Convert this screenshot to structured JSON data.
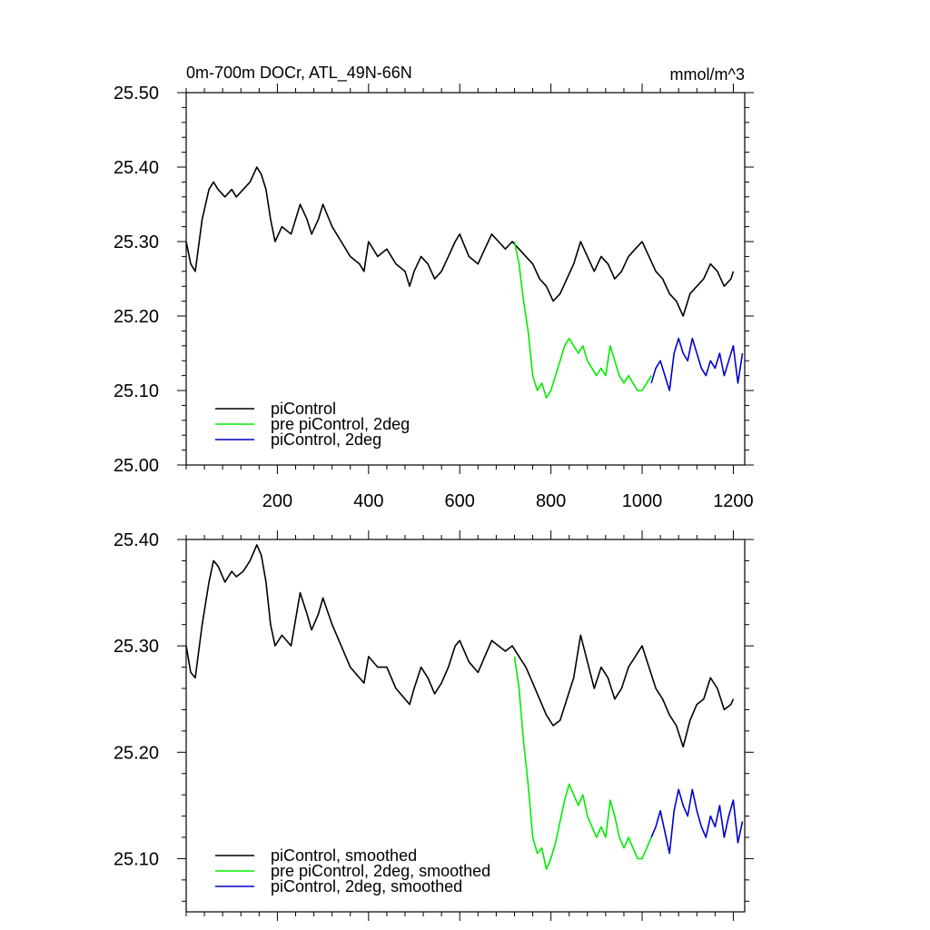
{
  "chart_data": [
    {
      "type": "line",
      "title": "0m-700m DOCr, ATL_49N-66N",
      "units": "mmol/m^3",
      "xlim": [
        0,
        1225
      ],
      "ylim": [
        25.0,
        25.5
      ],
      "x_ticks": [
        200,
        400,
        600,
        800,
        1000,
        1200
      ],
      "x_tick_labels": [
        "200",
        "400",
        "600",
        "800",
        "1000",
        "1200"
      ],
      "y_ticks": [
        25.0,
        25.1,
        25.2,
        25.3,
        25.4,
        25.5
      ],
      "y_tick_labels": [
        "25.00",
        "25.10",
        "25.20",
        "25.30",
        "25.40",
        "25.50"
      ],
      "legend_position": "bottom-left",
      "series": [
        {
          "name": "piControl",
          "color": "#000000",
          "x": [
            0,
            10,
            20,
            35,
            50,
            60,
            70,
            85,
            100,
            110,
            125,
            140,
            155,
            165,
            175,
            185,
            195,
            210,
            230,
            250,
            265,
            275,
            290,
            300,
            320,
            340,
            360,
            380,
            390,
            400,
            420,
            440,
            460,
            480,
            490,
            500,
            515,
            530,
            545,
            560,
            575,
            590,
            600,
            620,
            640,
            655,
            670,
            685,
            700,
            715,
            730,
            745,
            760,
            775,
            790,
            805,
            820,
            835,
            850,
            865,
            880,
            895,
            910,
            925,
            940,
            955,
            970,
            985,
            1000,
            1015,
            1030,
            1045,
            1060,
            1075,
            1090,
            1105,
            1120,
            1135,
            1150,
            1165,
            1180,
            1195,
            1200
          ],
          "y": [
            25.3,
            25.27,
            25.26,
            25.33,
            25.37,
            25.38,
            25.37,
            25.36,
            25.37,
            25.36,
            25.37,
            25.38,
            25.4,
            25.39,
            25.37,
            25.33,
            25.3,
            25.32,
            25.31,
            25.35,
            25.33,
            25.31,
            25.33,
            25.35,
            25.32,
            25.3,
            25.28,
            25.27,
            25.26,
            25.3,
            25.28,
            25.29,
            25.27,
            25.26,
            25.24,
            25.26,
            25.28,
            25.27,
            25.25,
            25.26,
            25.28,
            25.3,
            25.31,
            25.28,
            25.27,
            25.29,
            25.31,
            25.3,
            25.29,
            25.3,
            25.29,
            25.28,
            25.27,
            25.25,
            25.24,
            25.22,
            25.23,
            25.25,
            25.27,
            25.3,
            25.28,
            25.26,
            25.28,
            25.27,
            25.25,
            25.26,
            25.28,
            25.29,
            25.3,
            25.28,
            25.26,
            25.25,
            25.23,
            25.22,
            25.2,
            25.23,
            25.24,
            25.25,
            25.27,
            25.26,
            25.24,
            25.25,
            25.26
          ]
        },
        {
          "name": "pre piControl, 2deg",
          "color": "#00ee00",
          "x": [
            720,
            730,
            740,
            750,
            760,
            770,
            780,
            790,
            800,
            810,
            820,
            830,
            840,
            850,
            860,
            870,
            880,
            890,
            900,
            910,
            920,
            930,
            940,
            950,
            960,
            970,
            980,
            990,
            1000,
            1010,
            1020
          ],
          "y": [
            25.3,
            25.27,
            25.22,
            25.18,
            25.12,
            25.1,
            25.11,
            25.09,
            25.1,
            25.12,
            25.14,
            25.16,
            25.17,
            25.16,
            25.15,
            25.16,
            25.14,
            25.13,
            25.12,
            25.13,
            25.12,
            25.16,
            25.14,
            25.12,
            25.11,
            25.12,
            25.11,
            25.1,
            25.1,
            25.11,
            25.12
          ]
        },
        {
          "name": "piControl, 2deg",
          "color": "#0000cc",
          "x": [
            1020,
            1030,
            1040,
            1050,
            1060,
            1070,
            1080,
            1090,
            1100,
            1110,
            1120,
            1130,
            1140,
            1150,
            1160,
            1170,
            1180,
            1190,
            1200,
            1210,
            1220
          ],
          "y": [
            25.11,
            25.13,
            25.14,
            25.12,
            25.1,
            25.15,
            25.17,
            25.15,
            25.14,
            25.17,
            25.15,
            25.13,
            25.12,
            25.14,
            25.13,
            25.15,
            25.12,
            25.14,
            25.16,
            25.11,
            25.15
          ]
        }
      ]
    },
    {
      "type": "line",
      "title": "",
      "xlim": [
        0,
        1225
      ],
      "ylim": [
        25.05,
        25.4
      ],
      "x_ticks": [
        200,
        400,
        600,
        800,
        1000,
        1200
      ],
      "y_ticks": [
        25.1,
        25.2,
        25.3,
        25.4
      ],
      "y_tick_labels": [
        "25.10",
        "25.20",
        "25.30",
        "25.40"
      ],
      "legend_position": "bottom-left",
      "series": [
        {
          "name": "piControl, smoothed",
          "color": "#000000",
          "x": [
            0,
            10,
            20,
            35,
            50,
            60,
            70,
            85,
            100,
            110,
            125,
            140,
            155,
            165,
            175,
            185,
            195,
            210,
            230,
            250,
            265,
            275,
            290,
            300,
            320,
            340,
            360,
            380,
            390,
            400,
            420,
            440,
            460,
            480,
            490,
            500,
            515,
            530,
            545,
            560,
            575,
            590,
            600,
            620,
            640,
            655,
            670,
            685,
            700,
            715,
            730,
            745,
            760,
            775,
            790,
            805,
            820,
            835,
            850,
            865,
            880,
            895,
            910,
            925,
            940,
            955,
            970,
            985,
            1000,
            1015,
            1030,
            1045,
            1060,
            1075,
            1090,
            1105,
            1120,
            1135,
            1150,
            1165,
            1180,
            1195,
            1200
          ],
          "y": [
            25.3,
            25.275,
            25.27,
            25.32,
            25.36,
            25.38,
            25.375,
            25.36,
            25.37,
            25.365,
            25.37,
            25.38,
            25.395,
            25.385,
            25.36,
            25.32,
            25.3,
            25.31,
            25.3,
            25.35,
            25.33,
            25.315,
            25.33,
            25.345,
            25.32,
            25.3,
            25.28,
            25.27,
            25.265,
            25.29,
            25.28,
            25.28,
            25.26,
            25.25,
            25.245,
            25.26,
            25.28,
            25.27,
            25.255,
            25.265,
            25.28,
            25.3,
            25.305,
            25.285,
            25.275,
            25.29,
            25.305,
            25.3,
            25.295,
            25.3,
            25.29,
            25.28,
            25.265,
            25.25,
            25.235,
            25.225,
            25.23,
            25.25,
            25.27,
            25.31,
            25.285,
            25.26,
            25.28,
            25.27,
            25.25,
            25.26,
            25.28,
            25.29,
            25.3,
            25.28,
            25.26,
            25.25,
            25.235,
            25.225,
            25.205,
            25.23,
            25.245,
            25.25,
            25.27,
            25.26,
            25.24,
            25.245,
            25.25
          ]
        },
        {
          "name": "pre piControl, 2deg, smoothed",
          "color": "#00ee00",
          "x": [
            720,
            730,
            740,
            750,
            760,
            770,
            780,
            790,
            800,
            810,
            820,
            830,
            840,
            850,
            860,
            870,
            880,
            890,
            900,
            910,
            920,
            930,
            940,
            950,
            960,
            970,
            980,
            990,
            1000,
            1010,
            1020
          ],
          "y": [
            25.29,
            25.26,
            25.21,
            25.17,
            25.12,
            25.105,
            25.11,
            25.09,
            25.1,
            25.115,
            25.135,
            25.155,
            25.17,
            25.16,
            25.15,
            25.16,
            25.14,
            25.13,
            25.12,
            25.13,
            25.12,
            25.155,
            25.14,
            25.12,
            25.11,
            25.12,
            25.11,
            25.1,
            25.1,
            25.11,
            25.12
          ]
        },
        {
          "name": "piControl, 2deg, smoothed",
          "color": "#0000cc",
          "x": [
            1020,
            1030,
            1040,
            1050,
            1060,
            1070,
            1080,
            1090,
            1100,
            1110,
            1120,
            1130,
            1140,
            1150,
            1160,
            1170,
            1180,
            1190,
            1200,
            1210,
            1220
          ],
          "y": [
            25.12,
            25.13,
            25.145,
            25.125,
            25.105,
            25.145,
            25.165,
            25.15,
            25.14,
            25.165,
            25.145,
            25.13,
            25.12,
            25.14,
            25.13,
            25.15,
            25.12,
            25.14,
            25.155,
            25.115,
            25.135
          ]
        }
      ]
    }
  ]
}
